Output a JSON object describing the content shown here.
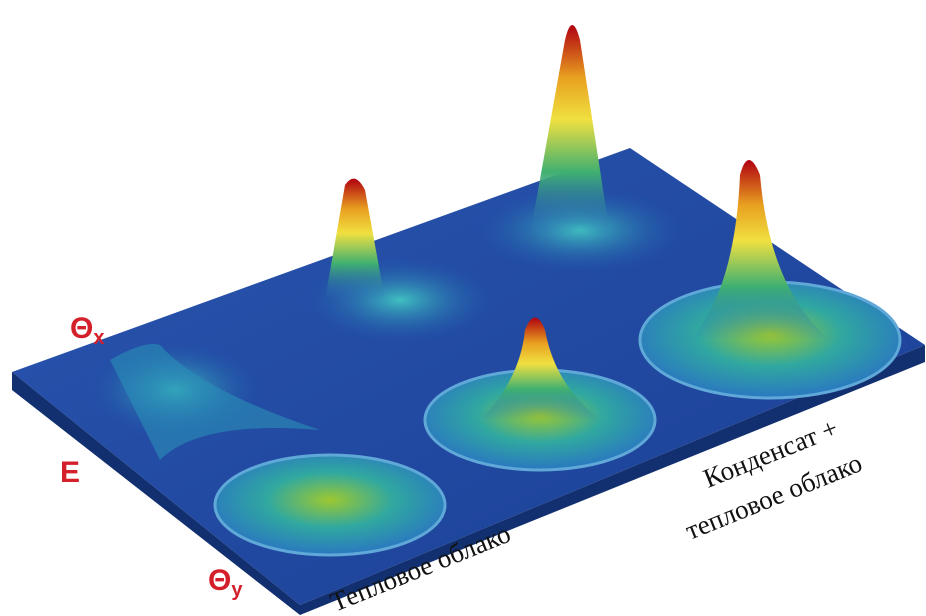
{
  "axes": {
    "theta_x": {
      "symbol": "Θ",
      "subscript": "x"
    },
    "energy": "E",
    "theta_y": {
      "symbol": "Θ",
      "subscript": "y"
    }
  },
  "labels": {
    "thermal_cloud": "Тепловое облако",
    "condensate_line1": "Конденсат +",
    "condensate_line2": "тепловое облако"
  }
}
